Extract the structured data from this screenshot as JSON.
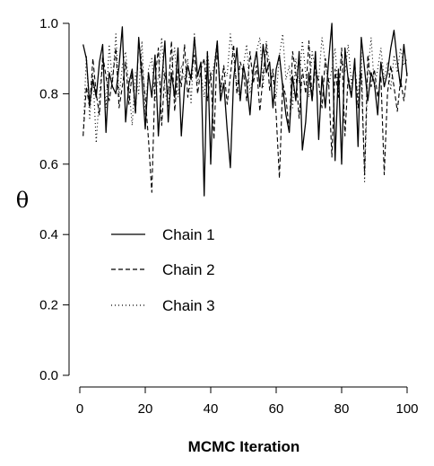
{
  "chart_data": {
    "type": "line",
    "title": "",
    "xlabel": "MCMC Iteration",
    "ylabel": "θ",
    "xlim": [
      0,
      100
    ],
    "ylim": [
      0,
      1
    ],
    "xticks": [
      0,
      20,
      40,
      60,
      80,
      100
    ],
    "yticks": [
      0.0,
      0.2,
      0.4,
      0.6,
      0.8,
      1.0
    ],
    "ytick_labels": [
      "0.0",
      "0.2",
      "0.4",
      "0.6",
      "0.8",
      "1.0"
    ],
    "grid": false,
    "legend": "left-middle",
    "x": [
      1,
      2,
      3,
      4,
      5,
      6,
      7,
      8,
      9,
      10,
      11,
      12,
      13,
      14,
      15,
      16,
      17,
      18,
      19,
      20,
      21,
      22,
      23,
      24,
      25,
      26,
      27,
      28,
      29,
      30,
      31,
      32,
      33,
      34,
      35,
      36,
      37,
      38,
      39,
      40,
      41,
      42,
      43,
      44,
      45,
      46,
      47,
      48,
      49,
      50,
      51,
      52,
      53,
      54,
      55,
      56,
      57,
      58,
      59,
      60,
      61,
      62,
      63,
      64,
      65,
      66,
      67,
      68,
      69,
      70,
      71,
      72,
      73,
      74,
      75,
      76,
      77,
      78,
      79,
      80,
      81,
      82,
      83,
      84,
      85,
      86,
      87,
      88,
      89,
      90,
      91,
      92,
      93,
      94,
      95,
      96,
      97,
      98,
      99,
      100
    ],
    "series": [
      {
        "name": "Chain 1",
        "style": "solid",
        "values": [
          0.94,
          0.9,
          0.77,
          0.84,
          0.79,
          0.89,
          0.94,
          0.69,
          0.86,
          0.82,
          0.8,
          0.88,
          0.99,
          0.72,
          0.83,
          0.87,
          0.75,
          0.96,
          0.84,
          0.7,
          0.86,
          0.79,
          0.91,
          0.68,
          0.83,
          0.95,
          0.72,
          0.86,
          0.79,
          0.93,
          0.68,
          0.82,
          0.88,
          0.84,
          0.96,
          0.85,
          0.89,
          0.51,
          0.92,
          0.6,
          0.86,
          0.95,
          0.78,
          0.83,
          0.7,
          0.59,
          0.84,
          0.93,
          0.78,
          0.88,
          0.83,
          0.74,
          0.87,
          0.92,
          0.82,
          0.94,
          0.86,
          0.89,
          0.76,
          0.87,
          0.91,
          0.82,
          0.74,
          0.69,
          0.85,
          0.78,
          0.92,
          0.64,
          0.72,
          0.86,
          0.78,
          0.92,
          0.67,
          0.85,
          0.76,
          0.89,
          1.0,
          0.61,
          0.87,
          0.6,
          0.93,
          0.84,
          0.79,
          0.9,
          0.65,
          0.96,
          0.87,
          0.78,
          0.86,
          0.83,
          0.74,
          0.89,
          0.82,
          0.86,
          0.93,
          0.98,
          0.89,
          0.82,
          0.94,
          0.85
        ]
      },
      {
        "name": "Chain 2",
        "style": "dashed",
        "values": [
          0.68,
          0.82,
          0.76,
          0.9,
          0.8,
          0.74,
          0.91,
          0.85,
          0.78,
          0.84,
          0.93,
          0.76,
          0.82,
          0.89,
          0.77,
          0.86,
          0.74,
          0.95,
          0.88,
          0.79,
          0.67,
          0.52,
          0.84,
          0.93,
          0.71,
          0.86,
          0.8,
          0.95,
          0.75,
          0.87,
          0.82,
          0.94,
          0.79,
          0.86,
          0.91,
          0.8,
          0.87,
          0.9,
          0.78,
          0.86,
          0.67,
          0.93,
          0.81,
          0.88,
          0.77,
          0.85,
          0.94,
          0.8,
          0.89,
          0.86,
          0.78,
          0.92,
          0.83,
          0.88,
          0.75,
          0.85,
          0.94,
          0.81,
          0.87,
          0.74,
          0.56,
          0.83,
          0.79,
          0.69,
          0.92,
          0.86,
          0.73,
          0.87,
          0.8,
          0.95,
          0.78,
          0.88,
          0.83,
          0.76,
          0.9,
          0.84,
          0.62,
          0.87,
          0.79,
          0.93,
          0.68,
          0.85,
          0.8,
          0.89,
          0.76,
          0.86,
          0.57,
          0.91,
          0.82,
          0.87,
          0.79,
          0.85,
          0.57,
          0.8,
          0.88,
          0.82,
          0.75,
          0.84,
          0.78,
          0.86
        ]
      },
      {
        "name": "Chain 3",
        "style": "dotted",
        "values": [
          0.68,
          0.91,
          0.73,
          0.86,
          0.66,
          0.8,
          0.89,
          0.76,
          0.94,
          0.83,
          0.97,
          0.79,
          0.88,
          0.92,
          0.82,
          0.71,
          0.86,
          0.8,
          0.95,
          0.74,
          0.87,
          0.9,
          0.78,
          0.85,
          0.96,
          0.81,
          0.76,
          0.87,
          0.93,
          0.79,
          0.88,
          0.84,
          0.9,
          0.77,
          0.97,
          0.83,
          0.86,
          0.79,
          0.92,
          0.84,
          0.88,
          0.95,
          0.8,
          0.87,
          0.85,
          0.97,
          0.9,
          0.83,
          0.78,
          0.88,
          0.94,
          0.8,
          0.86,
          0.92,
          0.96,
          0.82,
          0.95,
          0.88,
          0.84,
          0.79,
          0.91,
          0.97,
          0.84,
          0.88,
          0.76,
          0.9,
          0.83,
          0.95,
          0.86,
          0.79,
          0.92,
          0.87,
          0.84,
          0.96,
          0.89,
          0.82,
          0.87,
          0.93,
          0.8,
          0.9,
          0.86,
          0.94,
          0.83,
          0.88,
          0.79,
          0.92,
          0.55,
          0.86,
          0.96,
          0.82,
          0.87,
          0.93,
          0.84,
          0.89,
          0.81,
          0.91,
          0.86,
          0.93,
          0.88,
          0.9
        ]
      }
    ]
  }
}
